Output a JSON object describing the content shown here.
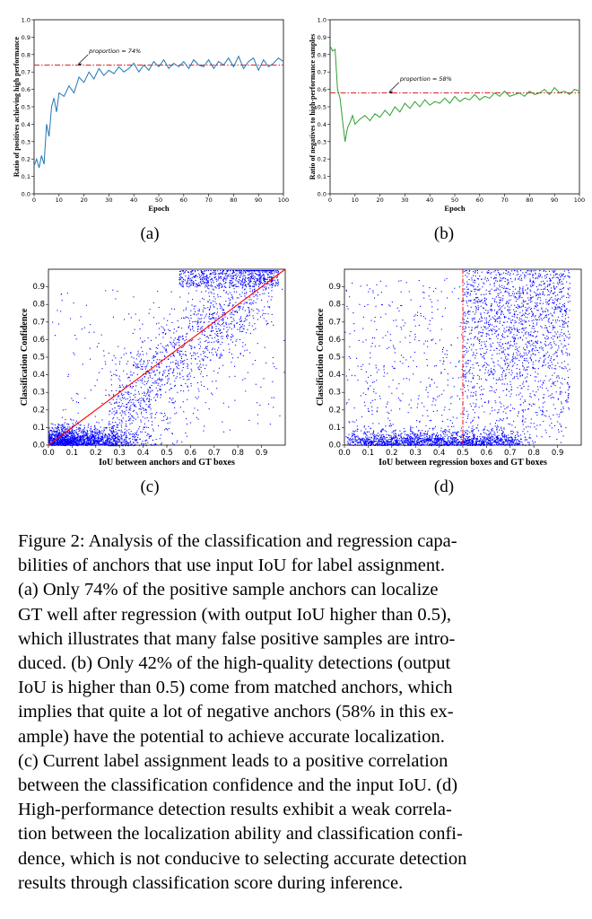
{
  "figure": {
    "panels": [
      {
        "label": "(a)"
      },
      {
        "label": "(b)"
      },
      {
        "label": "(c)"
      },
      {
        "label": "(d)"
      }
    ]
  },
  "caption": {
    "lines": [
      "Figure 2: Analysis of the classification and regression capa-",
      "bilities of anchors that use input IoU for label assignment.",
      "(a) Only 74% of the positive sample anchors can localize",
      "GT well after regression (with output IoU higher than 0.5),",
      "which illustrates that many false positive samples are intro-",
      "duced. (b) Only 42% of the high-quality detections (output",
      "IoU is higher than 0.5) come from matched anchors, which",
      "implies that quite a lot of negative anchors (58% in this ex-",
      "ample) have the potential to achieve accurate localization.",
      "(c) Current label assignment leads to a positive correlation",
      "between the classification confidence and the input IoU. (d)",
      "High-performance detection results exhibit a weak correla-",
      "tion between the localization ability and classification confi-",
      "dence, which is not conducive to selecting accurate detection",
      "results through classification score during inference."
    ]
  },
  "chart_data": [
    {
      "type": "line",
      "panel": "(a)",
      "xlabel": "Epoch",
      "ylabel": "Ratio of positives achieving high performance",
      "xlim": [
        0,
        100
      ],
      "ylim": [
        0.0,
        1.0
      ],
      "xticks": [
        "0",
        "10",
        "20",
        "30",
        "40",
        "50",
        "60",
        "70",
        "80",
        "90",
        "100"
      ],
      "yticks": [
        "0.0",
        "0.1",
        "0.2",
        "0.3",
        "0.4",
        "0.5",
        "0.6",
        "0.7",
        "0.8",
        "0.9",
        "1.0"
      ],
      "color": "#1f77b4",
      "reference": {
        "y": 0.74,
        "label": "proportion = 74%",
        "color": "#d62728"
      },
      "x": [
        0,
        1,
        2,
        3,
        4,
        5,
        6,
        7,
        8,
        9,
        10,
        12,
        14,
        16,
        18,
        20,
        22,
        24,
        26,
        28,
        30,
        32,
        34,
        36,
        38,
        40,
        42,
        44,
        46,
        48,
        50,
        52,
        54,
        56,
        58,
        60,
        62,
        64,
        66,
        68,
        70,
        72,
        74,
        76,
        78,
        80,
        82,
        84,
        86,
        88,
        90,
        92,
        94,
        96,
        98,
        100
      ],
      "y": [
        0.16,
        0.2,
        0.15,
        0.22,
        0.17,
        0.4,
        0.33,
        0.5,
        0.55,
        0.47,
        0.58,
        0.56,
        0.62,
        0.58,
        0.67,
        0.64,
        0.7,
        0.66,
        0.72,
        0.68,
        0.71,
        0.69,
        0.73,
        0.7,
        0.72,
        0.75,
        0.7,
        0.74,
        0.71,
        0.76,
        0.73,
        0.77,
        0.72,
        0.75,
        0.73,
        0.76,
        0.72,
        0.77,
        0.74,
        0.73,
        0.77,
        0.72,
        0.76,
        0.74,
        0.78,
        0.73,
        0.79,
        0.72,
        0.76,
        0.78,
        0.71,
        0.77,
        0.73,
        0.75,
        0.78,
        0.76
      ]
    },
    {
      "type": "line",
      "panel": "(b)",
      "xlabel": "Epoch",
      "ylabel": "Ratio of negatives to high-performance samples",
      "xlim": [
        0,
        100
      ],
      "ylim": [
        0.0,
        1.0
      ],
      "xticks": [
        "0",
        "10",
        "20",
        "30",
        "40",
        "50",
        "60",
        "70",
        "80",
        "90",
        "100"
      ],
      "yticks": [
        "0.0",
        "0.1",
        "0.2",
        "0.3",
        "0.4",
        "0.5",
        "0.6",
        "0.7",
        "0.8",
        "0.9",
        "1.0"
      ],
      "color": "#2ca02c",
      "reference": {
        "y": 0.58,
        "label": "proportion = 58%",
        "color": "#d62728"
      },
      "x": [
        0,
        1,
        2,
        3,
        4,
        5,
        6,
        7,
        8,
        9,
        10,
        12,
        14,
        16,
        18,
        20,
        22,
        24,
        26,
        28,
        30,
        32,
        34,
        36,
        38,
        40,
        42,
        44,
        46,
        48,
        50,
        52,
        54,
        56,
        58,
        60,
        62,
        64,
        66,
        68,
        70,
        72,
        74,
        76,
        78,
        80,
        82,
        84,
        86,
        88,
        90,
        92,
        94,
        96,
        98,
        100
      ],
      "y": [
        0.85,
        0.82,
        0.83,
        0.6,
        0.55,
        0.42,
        0.3,
        0.38,
        0.41,
        0.45,
        0.4,
        0.43,
        0.45,
        0.42,
        0.46,
        0.44,
        0.48,
        0.45,
        0.5,
        0.47,
        0.52,
        0.49,
        0.53,
        0.5,
        0.54,
        0.51,
        0.53,
        0.52,
        0.55,
        0.52,
        0.56,
        0.53,
        0.55,
        0.54,
        0.57,
        0.54,
        0.56,
        0.55,
        0.58,
        0.56,
        0.59,
        0.56,
        0.57,
        0.58,
        0.56,
        0.59,
        0.57,
        0.58,
        0.6,
        0.57,
        0.61,
        0.58,
        0.59,
        0.57,
        0.6,
        0.59
      ]
    },
    {
      "type": "scatter",
      "panel": "(c)",
      "xlabel": "IoU between anchors and GT boxes",
      "ylabel": "Classification Confidence",
      "xlim": [
        0.0,
        1.0
      ],
      "ylim": [
        0.0,
        1.0
      ],
      "xticks": [
        "0.0",
        "0.1",
        "0.2",
        "0.3",
        "0.4",
        "0.5",
        "0.6",
        "0.7",
        "0.8",
        "0.9"
      ],
      "yticks": [
        "0.0",
        "0.1",
        "0.2",
        "0.3",
        "0.4",
        "0.5",
        "0.6",
        "0.7",
        "0.8",
        "0.9"
      ],
      "color": "#0000ff",
      "reference_line": {
        "from": [
          0,
          0
        ],
        "to": [
          1,
          1
        ],
        "color": "#ff0000"
      },
      "distribution": "dense cluster near origin; points concentrated along diagonal, saturating near confidence 1.0 for IoU above 0.75"
    },
    {
      "type": "scatter",
      "panel": "(d)",
      "xlabel": "IoU between regression boxes and GT boxes",
      "ylabel": "Classification Confidence",
      "xlim": [
        0.0,
        1.0
      ],
      "ylim": [
        0.0,
        1.0
      ],
      "xticks": [
        "0.0",
        "0.1",
        "0.2",
        "0.3",
        "0.4",
        "0.5",
        "0.6",
        "0.7",
        "0.8",
        "0.9"
      ],
      "yticks": [
        "0.0",
        "0.1",
        "0.2",
        "0.3",
        "0.4",
        "0.5",
        "0.6",
        "0.7",
        "0.8",
        "0.9"
      ],
      "color": "#0000ff",
      "reference_vline": {
        "x": 0.5,
        "color": "#ff0000"
      },
      "distribution": "dense band at low confidence across all IoU; broad spread of confidence for IoU above 0.5"
    }
  ]
}
